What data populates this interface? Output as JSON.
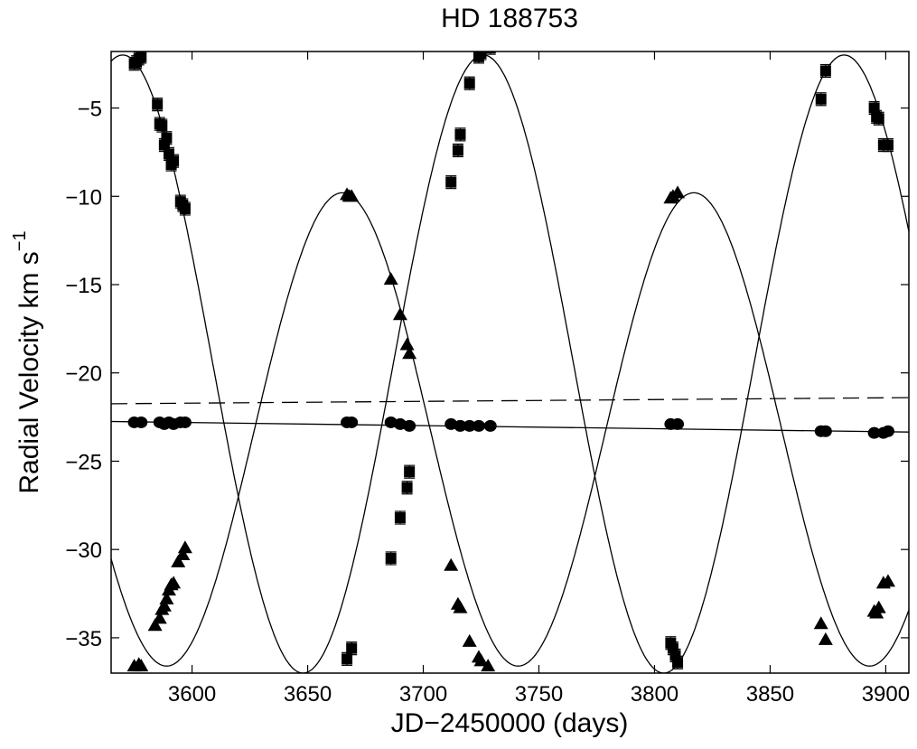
{
  "chart_data": {
    "type": "scatter",
    "title": "HD 188753",
    "xlabel": "JD−2450000 (days)",
    "ylabel": "Radial Velocity km s",
    "ylabel_sup": "−1",
    "xlim": [
      3565,
      3910
    ],
    "ylim": [
      -37,
      -1.8
    ],
    "grid": false,
    "x_ticks": [
      3600,
      3650,
      3700,
      3750,
      3800,
      3850,
      3900
    ],
    "x_tick_labels": [
      "3600",
      "3650",
      "3700",
      "3750",
      "3800",
      "3850",
      "3900"
    ],
    "y_ticks": [
      -5,
      -10,
      -15,
      -20,
      -25,
      -30,
      -35
    ],
    "y_tick_labels": [
      "−5",
      "−10",
      "−15",
      "−20",
      "−25",
      "−30",
      "−35"
    ],
    "series": [
      {
        "marker": "square",
        "errorbars": true,
        "points": [
          [
            3575,
            -2.5
          ],
          [
            3576,
            -2.4
          ],
          [
            3577,
            -2.2
          ],
          [
            3578,
            -2.1
          ],
          [
            3585,
            -4.8
          ],
          [
            3586,
            -5.9
          ],
          [
            3587,
            -6.0
          ],
          [
            3588,
            -7.1
          ],
          [
            3589,
            -6.7
          ],
          [
            3590,
            -7.6
          ],
          [
            3591,
            -8.2
          ],
          [
            3592,
            -8.0
          ],
          [
            3595,
            -10.3
          ],
          [
            3596,
            -10.5
          ],
          [
            3597,
            -10.7
          ],
          [
            3667,
            -36.2
          ],
          [
            3669,
            -35.6
          ],
          [
            3686,
            -30.5
          ],
          [
            3690,
            -28.2
          ],
          [
            3693,
            -26.5
          ],
          [
            3694,
            -25.6
          ],
          [
            3712,
            -9.2
          ],
          [
            3715,
            -7.4
          ],
          [
            3716,
            -6.5
          ],
          [
            3720,
            -3.6
          ],
          [
            3724,
            -2.1
          ],
          [
            3725,
            -1.9
          ],
          [
            3729,
            -1.6
          ],
          [
            3807,
            -35.3
          ],
          [
            3808,
            -35.6
          ],
          [
            3809,
            -36.0
          ],
          [
            3810,
            -36.4
          ],
          [
            3872,
            -4.5
          ],
          [
            3874,
            -2.9
          ],
          [
            3895,
            -5.0
          ],
          [
            3896,
            -5.5
          ],
          [
            3897,
            -5.6
          ],
          [
            3899,
            -7.1
          ],
          [
            3901,
            -7.1
          ]
        ]
      },
      {
        "marker": "triangle",
        "errorbars": false,
        "points": [
          [
            3575,
            -36.6
          ],
          [
            3577,
            -36.5
          ],
          [
            3578,
            -36.6
          ],
          [
            3584,
            -34.3
          ],
          [
            3586,
            -33.9
          ],
          [
            3587,
            -33.4
          ],
          [
            3588,
            -33.2
          ],
          [
            3589,
            -32.8
          ],
          [
            3590,
            -32.3
          ],
          [
            3591,
            -32.0
          ],
          [
            3592,
            -31.9
          ],
          [
            3594,
            -30.7
          ],
          [
            3596,
            -30.3
          ],
          [
            3597,
            -29.9
          ],
          [
            3667,
            -9.9
          ],
          [
            3668,
            -10.0
          ],
          [
            3669,
            -10.0
          ],
          [
            3686,
            -14.7
          ],
          [
            3690,
            -16.7
          ],
          [
            3693,
            -18.4
          ],
          [
            3694,
            -18.9
          ],
          [
            3712,
            -30.9
          ],
          [
            3715,
            -33.1
          ],
          [
            3716,
            -33.3
          ],
          [
            3720,
            -35.2
          ],
          [
            3724,
            -36.1
          ],
          [
            3725,
            -36.3
          ],
          [
            3728,
            -36.6
          ],
          [
            3807,
            -10.1
          ],
          [
            3808,
            -10.0
          ],
          [
            3810,
            -9.8
          ],
          [
            3872,
            -34.2
          ],
          [
            3874,
            -35.1
          ],
          [
            3895,
            -33.5
          ],
          [
            3896,
            -33.6
          ],
          [
            3897,
            -33.3
          ],
          [
            3899,
            -31.9
          ],
          [
            3901,
            -31.8
          ]
        ]
      },
      {
        "marker": "circle",
        "errorbars": false,
        "points": [
          [
            3575,
            -22.8
          ],
          [
            3578,
            -22.8
          ],
          [
            3586,
            -22.8
          ],
          [
            3588,
            -22.9
          ],
          [
            3590,
            -22.8
          ],
          [
            3592,
            -22.9
          ],
          [
            3595,
            -22.8
          ],
          [
            3597,
            -22.8
          ],
          [
            3667,
            -22.8
          ],
          [
            3669,
            -22.8
          ],
          [
            3686,
            -22.8
          ],
          [
            3690,
            -22.9
          ],
          [
            3694,
            -23.0
          ],
          [
            3712,
            -22.9
          ],
          [
            3716,
            -23.0
          ],
          [
            3720,
            -23.0
          ],
          [
            3724,
            -23.0
          ],
          [
            3729,
            -23.0
          ],
          [
            3807,
            -22.9
          ],
          [
            3810,
            -22.9
          ],
          [
            3872,
            -23.3
          ],
          [
            3874,
            -23.3
          ],
          [
            3895,
            -23.4
          ],
          [
            3899,
            -23.4
          ],
          [
            3901,
            -23.3
          ]
        ]
      }
    ],
    "fits": [
      {
        "style": "solid",
        "kind": "sine",
        "period": 156,
        "amplitude": 17.5,
        "center": -19.5,
        "peak_x": 3726
      },
      {
        "style": "solid",
        "kind": "sine",
        "period": 152,
        "amplitude": 13.4,
        "center": -23.2,
        "peak_x": 3665
      },
      {
        "style": "solid",
        "kind": "line",
        "x": [
          3565,
          3910
        ],
        "y": [
          -22.75,
          -23.35
        ]
      },
      {
        "style": "dashed",
        "kind": "line",
        "x": [
          3565,
          3910
        ],
        "y": [
          -21.75,
          -21.4
        ]
      }
    ]
  }
}
